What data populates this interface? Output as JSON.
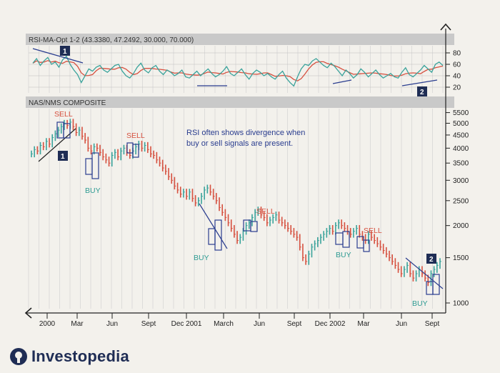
{
  "chart_data": [
    {
      "type": "line",
      "title": "RSI-MA-Opt 1-2 (43.3380, 47.2492, 30.000, 70.000)",
      "y_ticks": [
        80,
        60,
        40,
        20
      ],
      "ylim": [
        10,
        90
      ],
      "grid": true,
      "series": [
        {
          "name": "",
          "color": "#3aa39b"
        },
        {
          "name": "",
          "color": "#d6503f"
        }
      ],
      "rsi": [
        62,
        70,
        58,
        66,
        72,
        60,
        64,
        55,
        68,
        74,
        60,
        50,
        42,
        28,
        40,
        52,
        48,
        55,
        58,
        50,
        46,
        52,
        58,
        60,
        48,
        40,
        36,
        44,
        55,
        62,
        50,
        45,
        54,
        58,
        48,
        42,
        50,
        46,
        40,
        44,
        50,
        38,
        36,
        42,
        48,
        40,
        46,
        52,
        44,
        38,
        42,
        48,
        56,
        44,
        40,
        46,
        52,
        42,
        34,
        44,
        50,
        46,
        40,
        44,
        38,
        34,
        42,
        48,
        36,
        28,
        22,
        38,
        52,
        60,
        58,
        66,
        70,
        64,
        58,
        54,
        62,
        56,
        48,
        40,
        50,
        44,
        36,
        42,
        52,
        46,
        38,
        44,
        50,
        42,
        36,
        40,
        44,
        38,
        36,
        46,
        54,
        42,
        38,
        44,
        50,
        58,
        52,
        46,
        60,
        64,
        58
      ]
    },
    {
      "type": "line",
      "title": "NAS/NMS COMPOSITE",
      "y_ticks": [
        5500,
        5000,
        4500,
        4000,
        3500,
        3000,
        2500,
        2000,
        1500,
        1000
      ],
      "ylim": [
        950,
        5700
      ],
      "log_scale": true,
      "grid": true,
      "x_ticks": [
        "2000",
        "Mar",
        "Jun",
        "Sept",
        "Dec 2001",
        "March",
        "Jun",
        "Sept",
        "Dec 2002",
        "Mar",
        "Jun",
        "Sept"
      ],
      "color_up": "#3aa39b",
      "color_down": "#d6503f",
      "close": [
        3800,
        3950,
        3900,
        4100,
        4050,
        4250,
        4150,
        4400,
        4550,
        4700,
        4850,
        5000,
        4900,
        5050,
        4850,
        4600,
        4700,
        4450,
        4300,
        4000,
        3900,
        4050,
        4000,
        3850,
        3700,
        3600,
        3500,
        3750,
        3850,
        3700,
        3900,
        4000,
        3850,
        3750,
        3900,
        4050,
        4150,
        4000,
        4100,
        3950,
        3800,
        3750,
        3600,
        3500,
        3350,
        3250,
        3100,
        3000,
        2850,
        2750,
        2650,
        2700,
        2600,
        2700,
        2550,
        2450,
        2500,
        2600,
        2750,
        2800,
        2700,
        2600,
        2500,
        2350,
        2250,
        2150,
        2050,
        1950,
        1850,
        1750,
        1800,
        1900,
        2000,
        2050,
        2150,
        2250,
        2300,
        2200,
        2150,
        2050,
        2100,
        2150,
        2200,
        2100,
        2050,
        2000,
        1950,
        1900,
        1850,
        1800,
        1650,
        1500,
        1450,
        1550,
        1650,
        1700,
        1750,
        1800,
        1850,
        1900,
        1950,
        1900,
        2000,
        2050,
        2000,
        1950,
        1900,
        1850,
        1900,
        1950,
        1850,
        1800,
        1750,
        1850,
        1800,
        1750,
        1700,
        1650,
        1600,
        1550,
        1500,
        1450,
        1400,
        1350,
        1300,
        1350,
        1400,
        1300,
        1250,
        1300,
        1350,
        1300,
        1250,
        1200,
        1300,
        1350,
        1400,
        1450
      ]
    }
  ],
  "annotations": {
    "sell_label": "SELL",
    "buy_label": "BUY",
    "note": "RSI often shows divergence when buy or sell signals are present.",
    "badge_1": "1",
    "badge_2": "2"
  },
  "brand": {
    "name": "Investopedia",
    "color": "#1f2d55"
  },
  "colors": {
    "panel_header": "#c9c9c9",
    "sell": "#d6503f",
    "buy": "#2f9b93",
    "box": "#2a3d8f"
  }
}
